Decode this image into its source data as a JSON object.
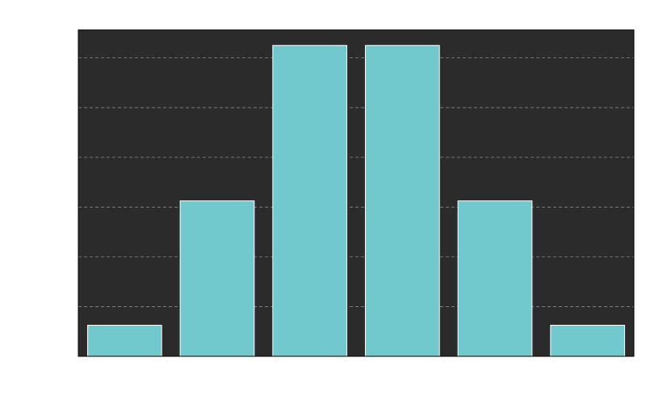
{
  "chart_data": {
    "type": "bar",
    "title": "",
    "xlabel": "",
    "ylabel": "",
    "categories": [
      "",
      "",
      "",
      "",
      "",
      ""
    ],
    "values": [
      1,
      5,
      10,
      10,
      5,
      1
    ],
    "ylim": [
      0,
      10.5
    ],
    "gridlines_y": [
      1.6,
      3.2,
      4.8,
      6.4,
      8.0,
      9.6
    ],
    "grid": true,
    "colors": {
      "plot_background": "#2b2b2b",
      "bar_fill": "#72c9cd",
      "bar_edge": "#ffffff",
      "grid": "#8a8a8a",
      "axes_edge": "#000000"
    }
  }
}
